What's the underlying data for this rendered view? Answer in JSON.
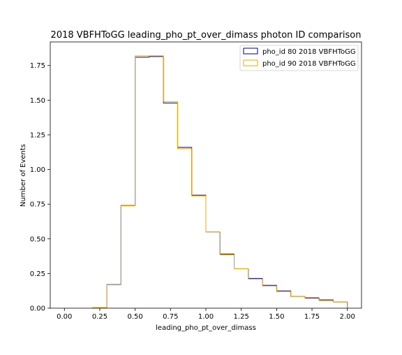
{
  "chart_data": {
    "type": "histogram-step",
    "title": "2018 VBFHToGG leading_pho_pt_over_dimass photon ID comparison",
    "xlabel": "leading_pho_pt_over_dimass",
    "ylabel": "Number of Events",
    "xlim": [
      -0.1,
      2.1
    ],
    "ylim": [
      0,
      1.92
    ],
    "xticks": [
      0.0,
      0.25,
      0.5,
      0.75,
      1.0,
      1.25,
      1.5,
      1.75,
      2.0
    ],
    "xtick_labels": [
      "0.00",
      "0.25",
      "0.50",
      "0.75",
      "1.00",
      "1.25",
      "1.50",
      "1.75",
      "2.00"
    ],
    "yticks": [
      0.0,
      0.25,
      0.5,
      0.75,
      1.0,
      1.25,
      1.5,
      1.75
    ],
    "ytick_labels": [
      "0.00",
      "0.25",
      "0.50",
      "0.75",
      "1.00",
      "1.25",
      "1.50",
      "1.75"
    ],
    "legend_position": "top-right",
    "bin_edges": [
      0.0,
      0.1,
      0.2,
      0.3,
      0.4,
      0.5,
      0.6,
      0.7,
      0.8,
      0.9,
      1.0,
      1.1,
      1.2,
      1.3,
      1.4,
      1.5,
      1.6,
      1.7,
      1.8,
      1.9,
      2.0
    ],
    "series": [
      {
        "name": "pho_id 80 2018 VBFHToGG",
        "color": "#000080",
        "values": [
          0.0,
          0.0,
          0.003,
          0.17,
          0.74,
          1.81,
          1.815,
          1.48,
          1.16,
          0.815,
          0.55,
          0.39,
          0.285,
          0.215,
          0.165,
          0.125,
          0.085,
          0.075,
          0.06,
          0.045
        ]
      },
      {
        "name": "pho_id 90 2018 VBFHToGG",
        "color": "#FFA500",
        "values": [
          0.0,
          0.0,
          0.003,
          0.168,
          0.738,
          1.82,
          1.82,
          1.49,
          1.15,
          0.81,
          0.55,
          0.385,
          0.285,
          0.21,
          0.16,
          0.12,
          0.085,
          0.07,
          0.055,
          0.045
        ]
      }
    ]
  }
}
